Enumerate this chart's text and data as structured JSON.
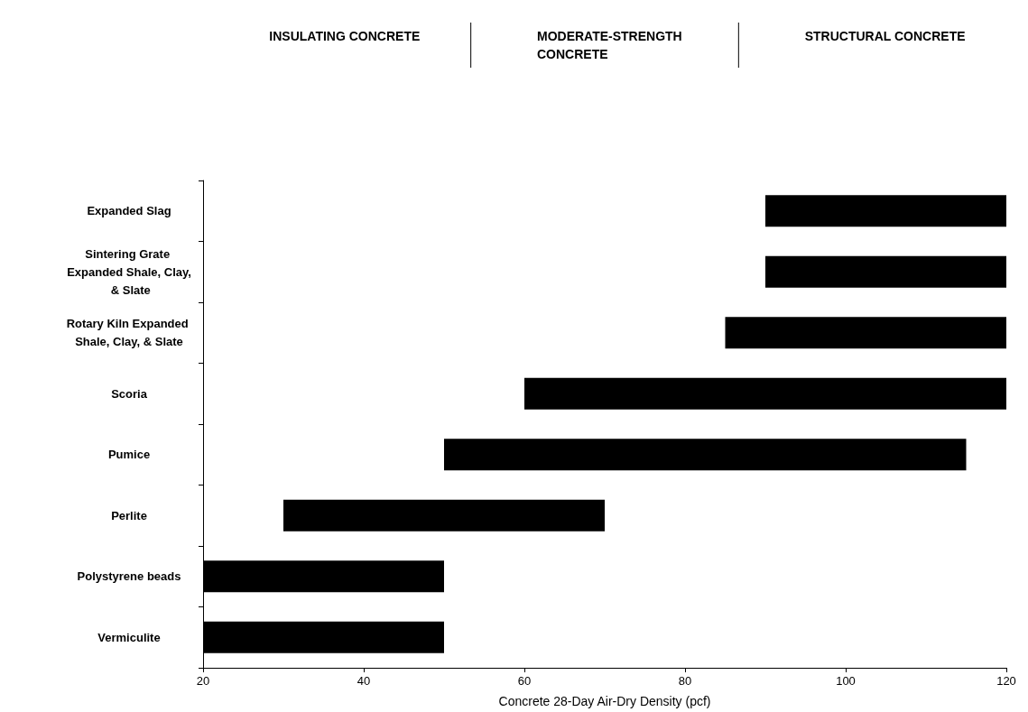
{
  "chart_data": {
    "type": "bar",
    "orientation": "horizontal",
    "xlabel": "Concrete 28-Day Air-Dry Density (pcf)",
    "categories": [
      "Expanded Slag",
      "Sintering Grate Expanded Shale, Clay, & Slate",
      "Rotary Kiln Expanded Shale, Clay, & Slate",
      "Scoria",
      "Pumice",
      "Perlite",
      "Polystyrene beads",
      "Vermiculite"
    ],
    "base": [
      90,
      90,
      85,
      60,
      50,
      30,
      20,
      20
    ],
    "values": [
      30,
      30,
      35,
      60,
      65,
      40,
      30,
      30
    ],
    "color": "#000000",
    "xlim": [
      20,
      120
    ],
    "xticks": [
      20,
      40,
      60,
      80,
      100,
      120
    ],
    "annotations": [
      "INSULATING CONCRETE",
      "MODERATE-STRENGTH CONCRETE",
      "STRUCTURAL CONCRETE"
    ],
    "grid": false
  }
}
